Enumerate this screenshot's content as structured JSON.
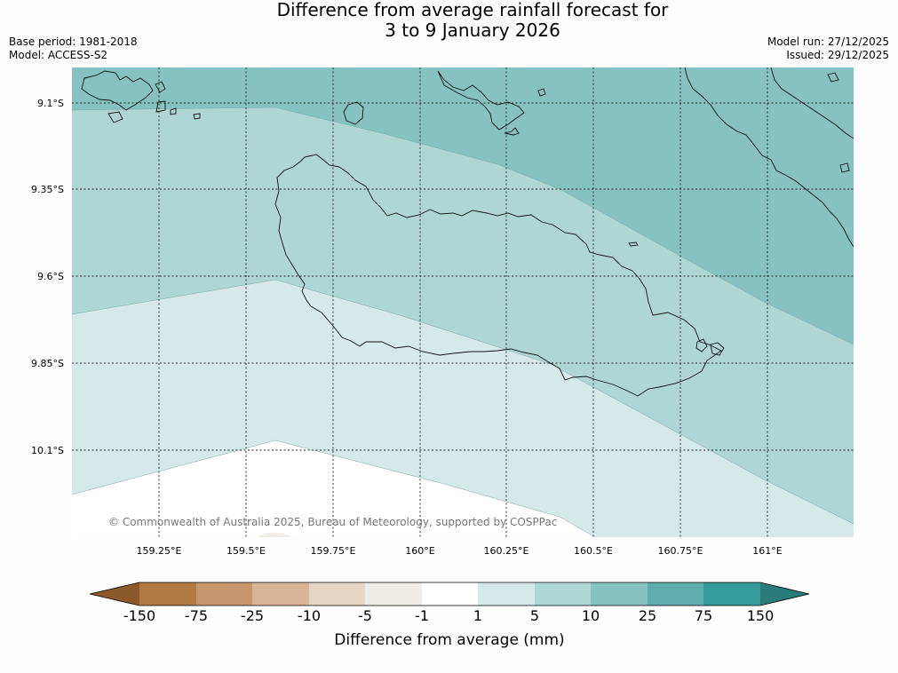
{
  "title": {
    "line1": "Difference from average rainfall forecast for",
    "line2": "3 to 9 January 2026"
  },
  "meta_left": {
    "base_period": "Base period: 1981-2018",
    "model": "Model: ACCESS-S2"
  },
  "meta_right": {
    "model_run": "Model run: 27/12/2025",
    "issued": "Issued: 29/12/2025"
  },
  "map": {
    "region": "Guadalcanal, Solomon Islands",
    "lat_ticks": [
      "9.1°S",
      "9.35°S",
      "9.6°S",
      "9.85°S",
      "10.1°S"
    ],
    "lon_ticks": [
      "159.25°E",
      "159.5°E",
      "159.75°E",
      "160°E",
      "160.25°E",
      "160.5°E",
      "160.75°E",
      "161°E"
    ],
    "gridlines": true,
    "copyright": "© Commonwealth of Australia 2025, Bureau of Meteorology, supported by COSPPac"
  },
  "colorbar": {
    "label": "Difference from average (mm)",
    "ticks": [
      "-150",
      "-75",
      "-25",
      "-10",
      "-5",
      "-1",
      "1",
      "5",
      "10",
      "25",
      "75",
      "150"
    ],
    "colors": {
      "below_-150": "#8c5a2a",
      "-150_-75": "#b07a42",
      "-75_-25": "#c6976c",
      "-25_-10": "#d8b597",
      "-10_-5": "#e7d5c5",
      "-5_-1": "#f0ece8",
      "-1_1": "#ffffff",
      "1_5": "#d5e9e8",
      "5_10": "#aed6d5",
      "10_25": "#85c2c1",
      "25_75": "#5fadac",
      "75_150": "#359b98",
      "above_150": "#2a7c7a"
    }
  }
}
